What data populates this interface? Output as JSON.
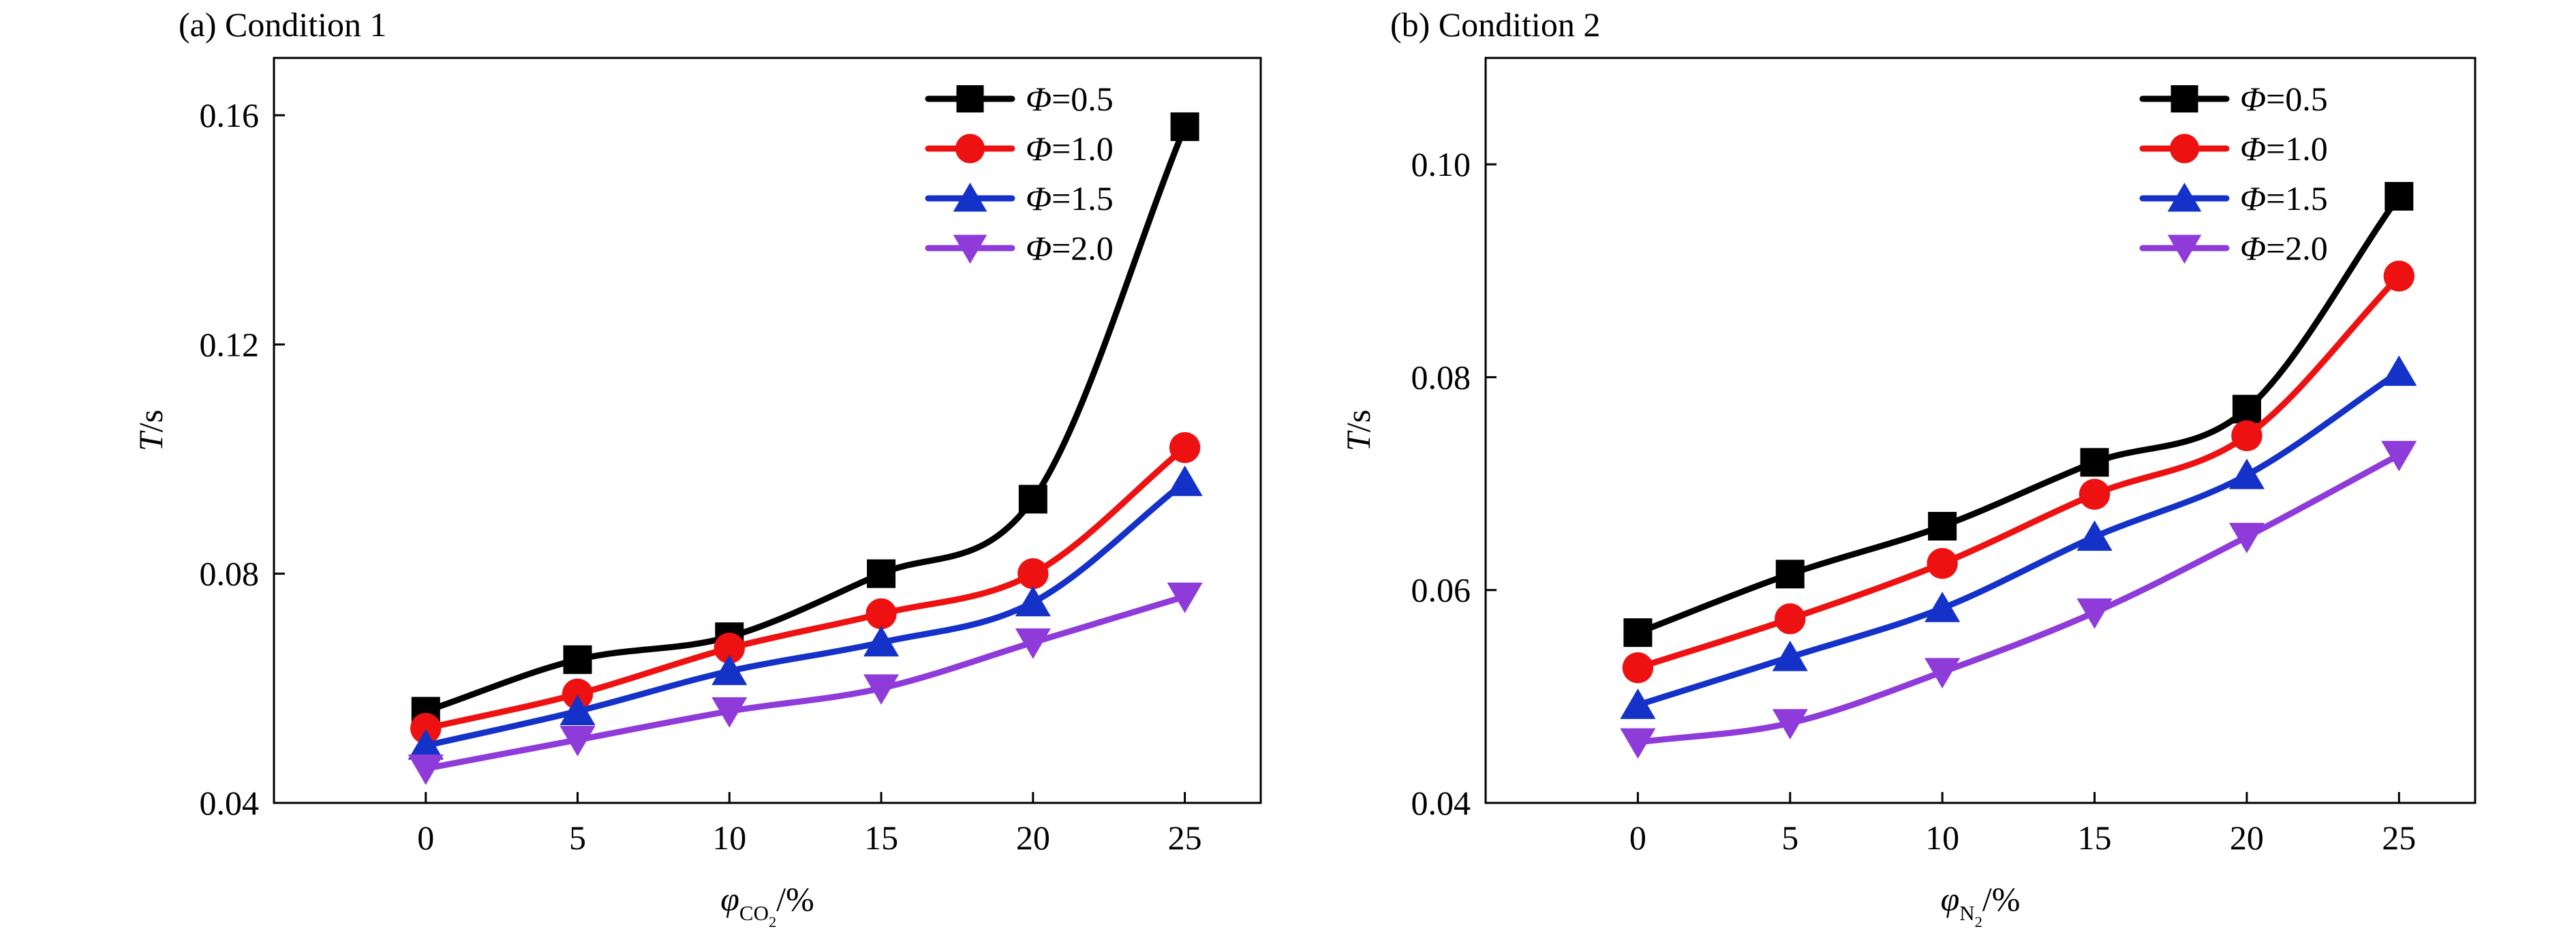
{
  "chart_data": [
    {
      "type": "line",
      "panel_label": "(a) Condition 1",
      "xlabel": {
        "symbol": "φ",
        "subscript": "CO",
        "subscript_sub": "2",
        "unit": "/%"
      },
      "ylabel": {
        "symbol": "T",
        "unit": "/s"
      },
      "xlim": [
        -5,
        27.5
      ],
      "ylim": [
        0.04,
        0.17
      ],
      "x_ticks": [
        0,
        5,
        10,
        15,
        20,
        25
      ],
      "x_tick_labels": [
        "0",
        "5",
        "10",
        "15",
        "20",
        "25"
      ],
      "y_ticks": [
        0.04,
        0.08,
        0.12,
        0.16
      ],
      "y_tick_labels": [
        "0.04",
        "0.08",
        "0.12",
        "0.16"
      ],
      "legend_position": "top-right",
      "x": [
        0,
        5,
        10,
        15,
        20,
        25
      ],
      "series": [
        {
          "name": "Φ=0.5",
          "symbol": "Φ",
          "value_text": "=0.5",
          "color": "#000000",
          "marker": "square",
          "values": [
            0.056,
            0.065,
            0.069,
            0.08,
            0.093,
            0.158
          ]
        },
        {
          "name": "Φ=1.0",
          "symbol": "Φ",
          "value_text": "=1.0",
          "color": "#ee1111",
          "marker": "circle",
          "values": [
            0.053,
            0.059,
            0.067,
            0.073,
            0.08,
            0.102
          ]
        },
        {
          "name": "Φ=1.5",
          "symbol": "Φ",
          "value_text": "=1.5",
          "color": "#1532c8",
          "marker": "triangle-up",
          "values": [
            0.05,
            0.056,
            0.063,
            0.068,
            0.075,
            0.096
          ]
        },
        {
          "name": "Φ=2.0",
          "symbol": "Φ",
          "value_text": "=2.0",
          "color": "#8f3bd9",
          "marker": "triangle-down",
          "values": [
            0.046,
            0.051,
            0.056,
            0.06,
            0.068,
            0.076
          ]
        }
      ]
    },
    {
      "type": "line",
      "panel_label": "(b) Condition 2",
      "xlabel": {
        "symbol": "φ",
        "subscript": "N",
        "subscript_sub": "2",
        "unit": "/%"
      },
      "ylabel": {
        "symbol": "T",
        "unit": "/s"
      },
      "xlim": [
        -5,
        27.5
      ],
      "ylim": [
        0.04,
        0.11
      ],
      "x_ticks": [
        0,
        5,
        10,
        15,
        20,
        25
      ],
      "x_tick_labels": [
        "0",
        "5",
        "10",
        "15",
        "20",
        "25"
      ],
      "y_ticks": [
        0.04,
        0.06,
        0.08,
        0.1
      ],
      "y_tick_labels": [
        "0.04",
        "0.06",
        "0.08",
        "0.10"
      ],
      "legend_position": "top-right",
      "x": [
        0,
        5,
        10,
        15,
        20,
        25
      ],
      "series": [
        {
          "name": "Φ=0.5",
          "symbol": "Φ",
          "value_text": "=0.5",
          "color": "#000000",
          "marker": "square",
          "values": [
            0.056,
            0.0615,
            0.066,
            0.072,
            0.077,
            0.097
          ]
        },
        {
          "name": "Φ=1.0",
          "symbol": "Φ",
          "value_text": "=1.0",
          "color": "#ee1111",
          "marker": "circle",
          "values": [
            0.0527,
            0.0573,
            0.0625,
            0.069,
            0.0745,
            0.0895
          ]
        },
        {
          "name": "Φ=1.5",
          "symbol": "Φ",
          "value_text": "=1.5",
          "color": "#1532c8",
          "marker": "triangle-up",
          "values": [
            0.0492,
            0.0537,
            0.0583,
            0.065,
            0.0708,
            0.0805
          ]
        },
        {
          "name": "Φ=2.0",
          "symbol": "Φ",
          "value_text": "=2.0",
          "color": "#8f3bd9",
          "marker": "triangle-down",
          "values": [
            0.0457,
            0.0475,
            0.0523,
            0.0579,
            0.065,
            0.0727
          ]
        }
      ]
    }
  ]
}
